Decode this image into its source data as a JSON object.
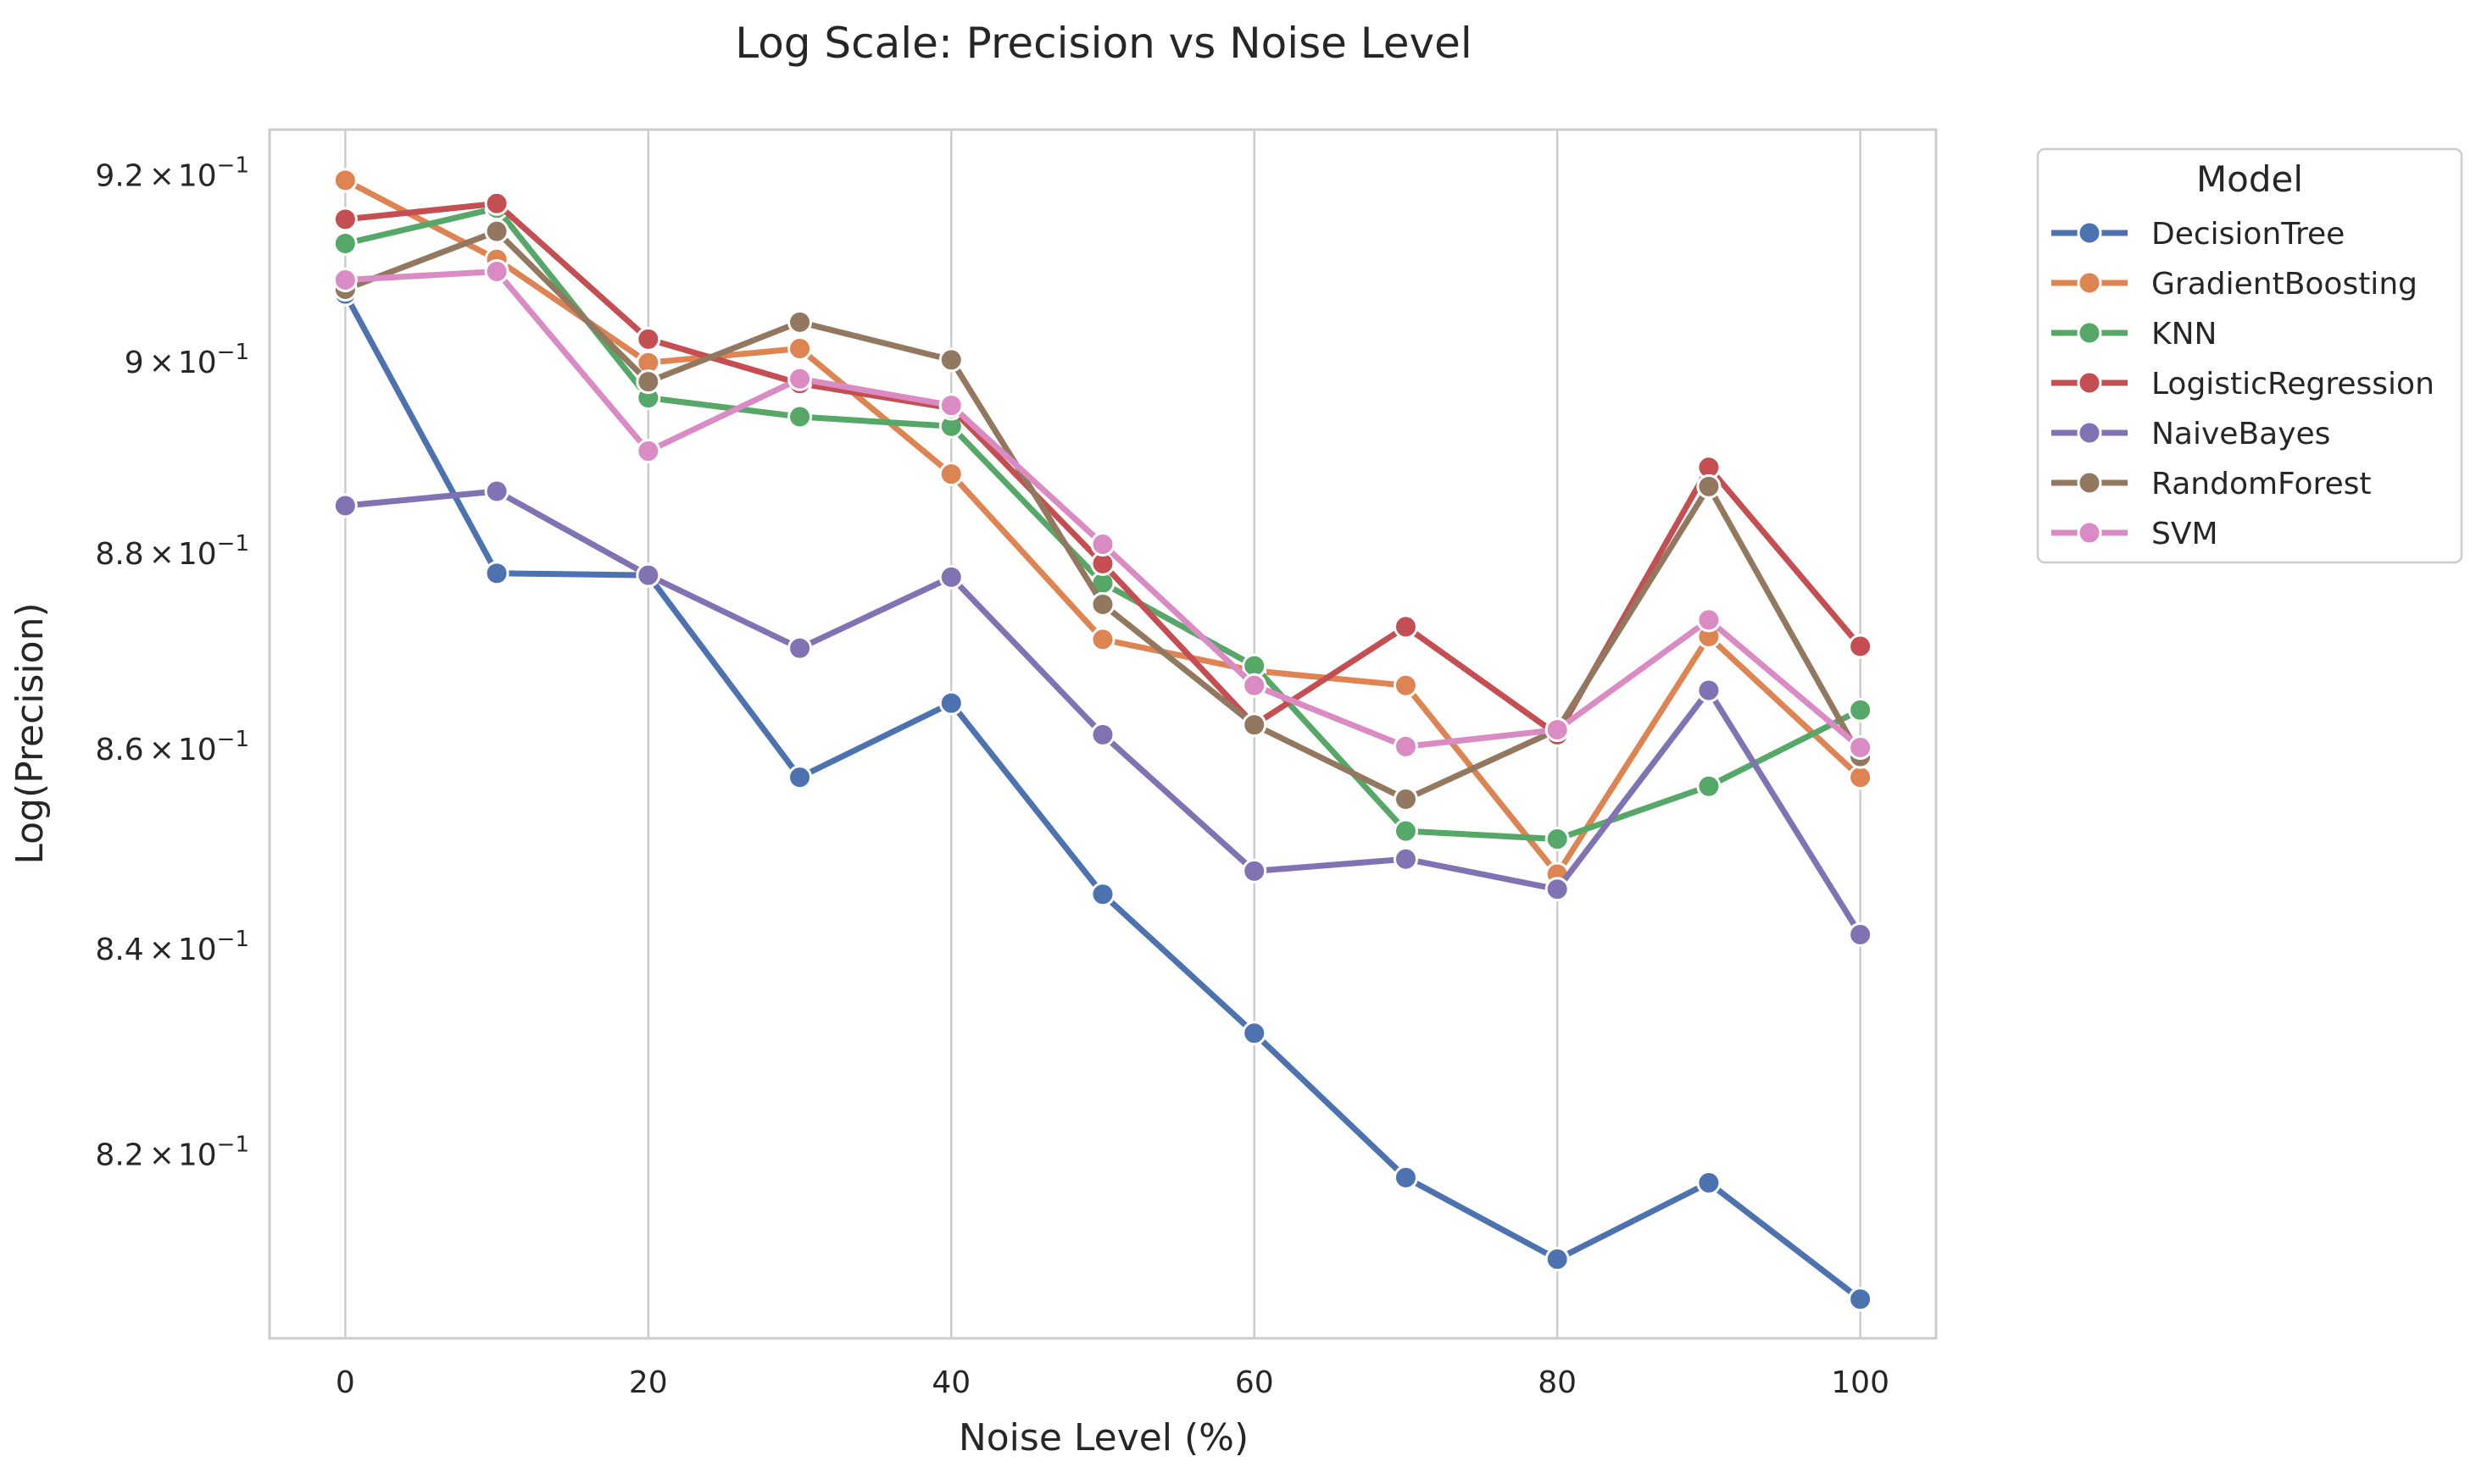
{
  "chart_data": {
    "type": "line",
    "title": "Log Scale: Precision vs Noise Level",
    "xlabel": "Noise Level (%)",
    "ylabel": "Log(Precision)",
    "yscale": "log",
    "xlim": [
      -5,
      105
    ],
    "ylim": [
      0.8025,
      0.925
    ],
    "grid": "vertical",
    "x": [
      0,
      10,
      20,
      30,
      40,
      50,
      60,
      70,
      80,
      90,
      100
    ],
    "x_ticks": [
      0,
      20,
      40,
      60,
      80,
      100
    ],
    "x_tick_labels": [
      "0",
      "20",
      "40",
      "60",
      "80",
      "100"
    ],
    "y_ticks": [
      0.82,
      0.84,
      0.86,
      0.88,
      0.9,
      0.92
    ],
    "y_tick_labels": [
      {
        "mant": "8.2",
        "exp": "−1"
      },
      {
        "mant": "8.4",
        "exp": "−1"
      },
      {
        "mant": "8.6",
        "exp": "−1"
      },
      {
        "mant": "8.8",
        "exp": "−1"
      },
      {
        "mant": "9",
        "exp": "−1"
      },
      {
        "mant": "9.2",
        "exp": "−1"
      }
    ],
    "tick_times": "×",
    "tick_base": "10",
    "legend": {
      "title": "Model",
      "placement": "outside-top-right"
    },
    "series": [
      {
        "name": "DecisionTree",
        "color": "#4c72b0",
        "values": [
          0.9073,
          0.878,
          0.8778,
          0.8572,
          0.8647,
          0.8455,
          0.8318,
          0.8178,
          0.81,
          0.8173,
          0.8062
        ]
      },
      {
        "name": "GradientBoosting",
        "color": "#dd8452",
        "values": [
          0.9195,
          0.911,
          0.9,
          0.9015,
          0.8883,
          0.8712,
          0.868,
          0.8665,
          0.8475,
          0.8715,
          0.8572
        ]
      },
      {
        "name": "KNN",
        "color": "#55a868",
        "values": [
          0.9127,
          0.9165,
          0.8963,
          0.8943,
          0.8933,
          0.877,
          0.8685,
          0.8518,
          0.851,
          0.8563,
          0.864
        ]
      },
      {
        "name": "LogisticRegression",
        "color": "#c44e52",
        "values": [
          0.9153,
          0.917,
          0.9025,
          0.8978,
          0.8952,
          0.879,
          0.8625,
          0.8725,
          0.8615,
          0.889,
          0.8705
        ]
      },
      {
        "name": "NaiveBayes",
        "color": "#8172b3",
        "values": [
          0.885,
          0.8865,
          0.8778,
          0.8703,
          0.8776,
          0.8615,
          0.8478,
          0.849,
          0.846,
          0.866,
          0.8415
        ]
      },
      {
        "name": "RandomForest",
        "color": "#937860",
        "values": [
          0.9078,
          0.914,
          0.898,
          0.9043,
          0.9003,
          0.8748,
          0.8625,
          0.855,
          0.862,
          0.887,
          0.8593
        ]
      },
      {
        "name": "SVM",
        "color": "#da8bc3",
        "values": [
          0.9088,
          0.9097,
          0.8907,
          0.8983,
          0.8955,
          0.881,
          0.8665,
          0.8603,
          0.862,
          0.8732,
          0.8602
        ]
      }
    ]
  }
}
